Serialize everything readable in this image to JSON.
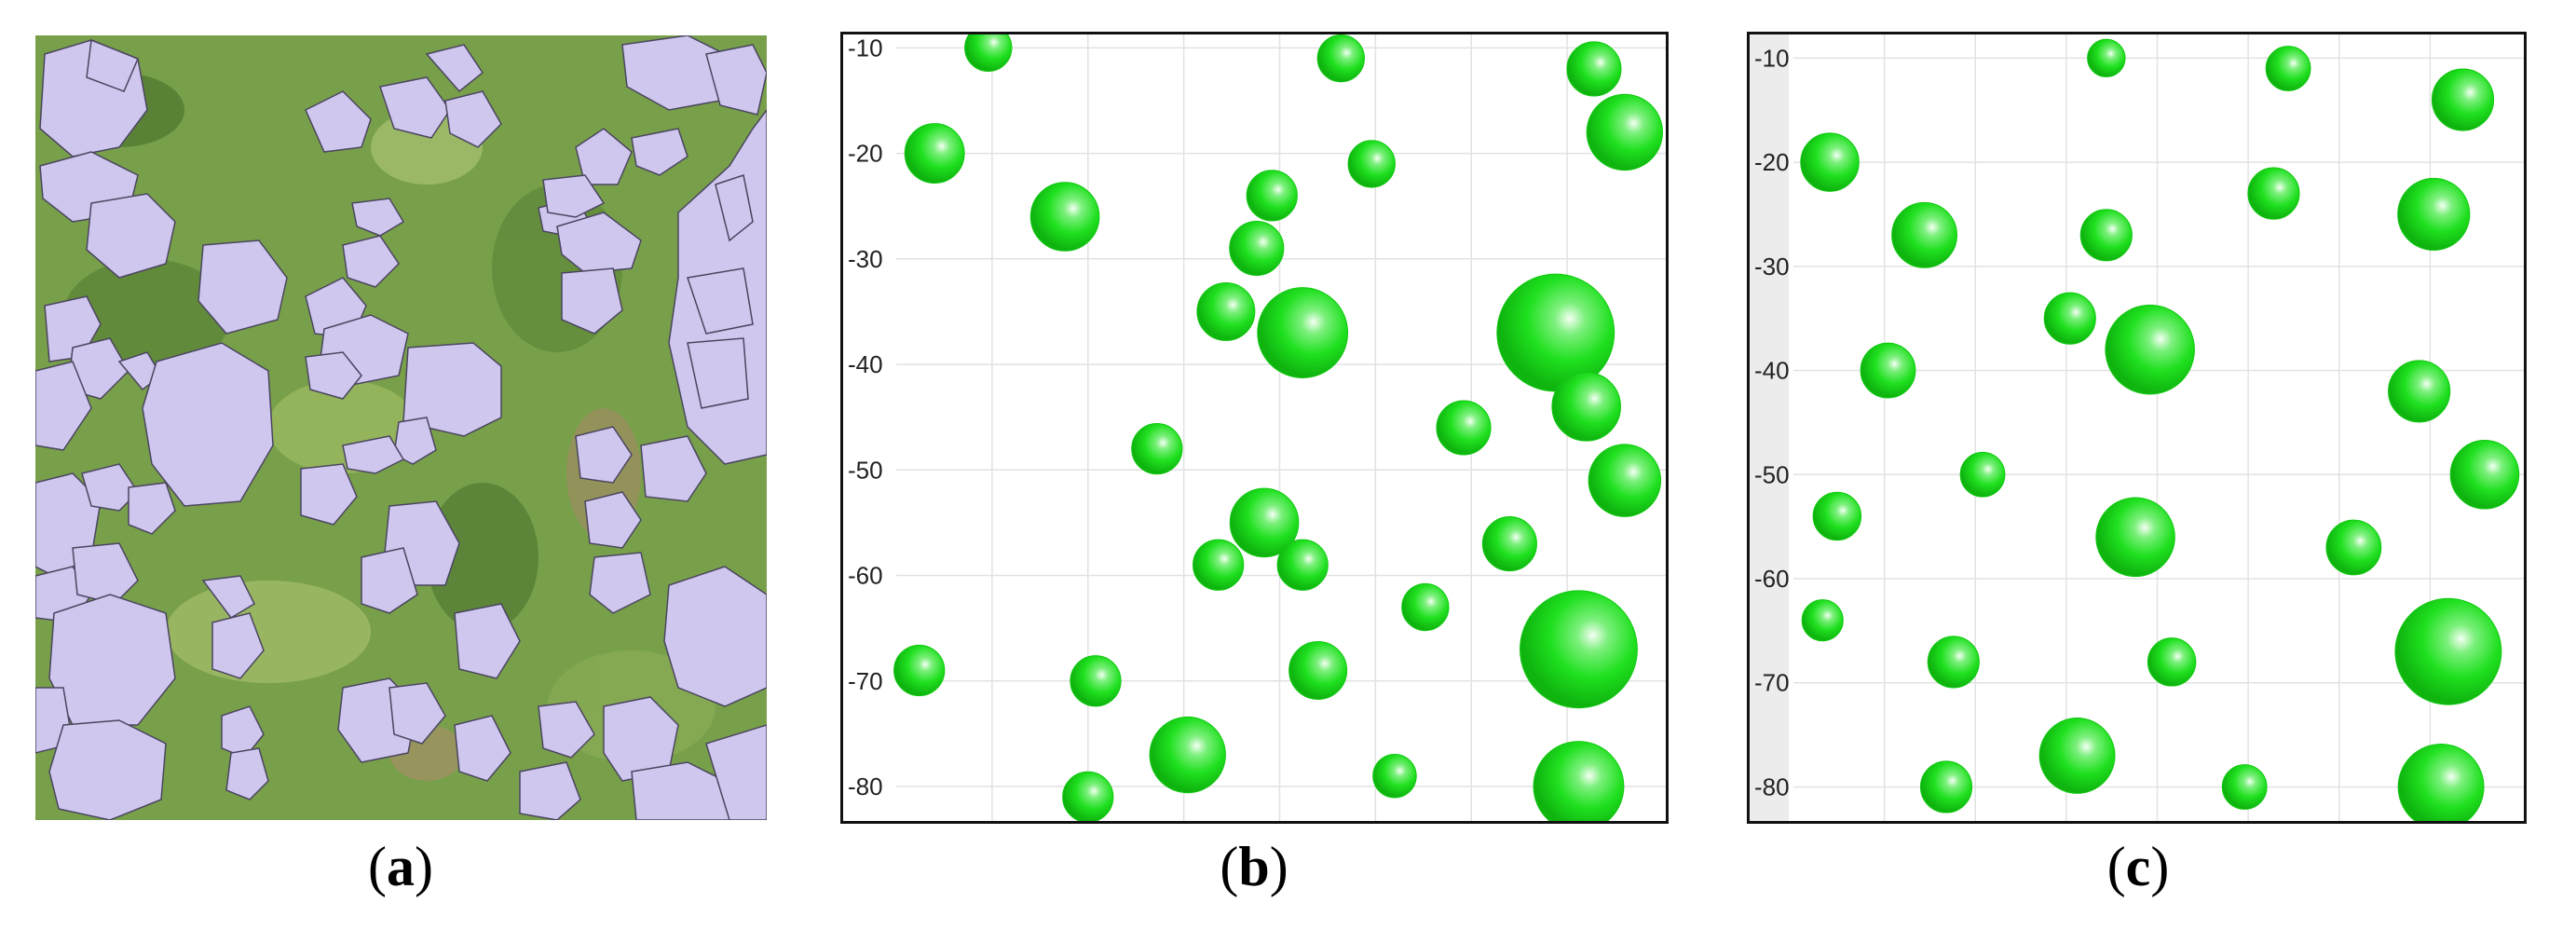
{
  "figure": {
    "captions": [
      {
        "open": "(",
        "letter": "a",
        "close": ")"
      },
      {
        "open": "(",
        "letter": "b",
        "close": ")"
      },
      {
        "open": "(",
        "letter": "c",
        "close": ")"
      }
    ]
  },
  "colors": {
    "crown_polygon": "#cfc7ee",
    "crown_outline": "#4b4560",
    "vegetation_bg": "#7ea44e",
    "sphere_green": "#1fe01f",
    "sphere_highlight": "#eaffea",
    "plot_bg": "#ffffff",
    "grid": "#e2e2e2",
    "frame": "#111111"
  },
  "chart_data": [
    {
      "type": "scatter",
      "panel": "b",
      "title": "",
      "xlabel": "",
      "ylabel": "",
      "ylim": [
        -83,
        -9
      ],
      "yticks": [
        -10,
        -20,
        -30,
        -40,
        -50,
        -60,
        -70,
        -80
      ],
      "grid": true,
      "points": [
        {
          "x": 0.12,
          "y": -10,
          "r": 2.6
        },
        {
          "x": 0.58,
          "y": -11,
          "r": 2.6
        },
        {
          "x": 0.91,
          "y": -12,
          "r": 3.0
        },
        {
          "x": 0.95,
          "y": -18,
          "r": 4.2
        },
        {
          "x": 0.05,
          "y": -20,
          "r": 3.3
        },
        {
          "x": 0.22,
          "y": -26,
          "r": 3.8
        },
        {
          "x": 0.62,
          "y": -21,
          "r": 2.6
        },
        {
          "x": 0.49,
          "y": -24,
          "r": 2.8
        },
        {
          "x": 0.47,
          "y": -29,
          "r": 3.0
        },
        {
          "x": 0.43,
          "y": -35,
          "r": 3.2
        },
        {
          "x": 0.53,
          "y": -37,
          "r": 5.0
        },
        {
          "x": 0.86,
          "y": -37,
          "r": 6.5
        },
        {
          "x": 0.34,
          "y": -48,
          "r": 2.8
        },
        {
          "x": 0.74,
          "y": -46,
          "r": 3.0
        },
        {
          "x": 0.9,
          "y": -44,
          "r": 3.8
        },
        {
          "x": 0.95,
          "y": -51,
          "r": 4.0
        },
        {
          "x": 0.48,
          "y": -55,
          "r": 3.8
        },
        {
          "x": 0.42,
          "y": -59,
          "r": 2.8
        },
        {
          "x": 0.53,
          "y": -59,
          "r": 2.8
        },
        {
          "x": 0.8,
          "y": -57,
          "r": 3.0
        },
        {
          "x": 0.69,
          "y": -63,
          "r": 2.6
        },
        {
          "x": 0.89,
          "y": -67,
          "r": 6.5
        },
        {
          "x": 0.55,
          "y": -69,
          "r": 3.2
        },
        {
          "x": 0.26,
          "y": -70,
          "r": 2.8
        },
        {
          "x": 0.03,
          "y": -69,
          "r": 2.8
        },
        {
          "x": 0.38,
          "y": -77,
          "r": 4.2
        },
        {
          "x": 0.25,
          "y": -81,
          "r": 2.8
        },
        {
          "x": 0.65,
          "y": -79,
          "r": 2.4
        },
        {
          "x": 0.89,
          "y": -80,
          "r": 5.0
        }
      ]
    },
    {
      "type": "scatter",
      "panel": "c",
      "title": "",
      "xlabel": "",
      "ylabel": "",
      "ylim": [
        -83,
        -8
      ],
      "yticks": [
        -10,
        -20,
        -30,
        -40,
        -50,
        -60,
        -70,
        -80
      ],
      "grid": true,
      "points": [
        {
          "x": 0.43,
          "y": -10,
          "r": 2.2
        },
        {
          "x": 0.68,
          "y": -11,
          "r": 2.6
        },
        {
          "x": 0.92,
          "y": -14,
          "r": 3.6
        },
        {
          "x": 0.05,
          "y": -20,
          "r": 3.4
        },
        {
          "x": 0.18,
          "y": -27,
          "r": 3.8
        },
        {
          "x": 0.43,
          "y": -27,
          "r": 3.0
        },
        {
          "x": 0.66,
          "y": -23,
          "r": 3.0
        },
        {
          "x": 0.88,
          "y": -25,
          "r": 4.2
        },
        {
          "x": 0.38,
          "y": -35,
          "r": 3.0
        },
        {
          "x": 0.49,
          "y": -38,
          "r": 5.2
        },
        {
          "x": 0.13,
          "y": -40,
          "r": 3.2
        },
        {
          "x": 0.86,
          "y": -42,
          "r": 3.6
        },
        {
          "x": 0.26,
          "y": -50,
          "r": 2.6
        },
        {
          "x": 0.47,
          "y": -56,
          "r": 4.6
        },
        {
          "x": 0.06,
          "y": -54,
          "r": 2.8
        },
        {
          "x": 0.95,
          "y": -50,
          "r": 4.0
        },
        {
          "x": 0.77,
          "y": -57,
          "r": 3.2
        },
        {
          "x": 0.9,
          "y": -67,
          "r": 6.2
        },
        {
          "x": 0.22,
          "y": -68,
          "r": 3.0
        },
        {
          "x": 0.52,
          "y": -68,
          "r": 2.8
        },
        {
          "x": 0.39,
          "y": -77,
          "r": 4.4
        },
        {
          "x": 0.21,
          "y": -80,
          "r": 3.0
        },
        {
          "x": 0.62,
          "y": -80,
          "r": 2.6
        },
        {
          "x": 0.04,
          "y": -64,
          "r": 2.4
        },
        {
          "x": 0.89,
          "y": -80,
          "r": 5.0
        }
      ]
    }
  ]
}
